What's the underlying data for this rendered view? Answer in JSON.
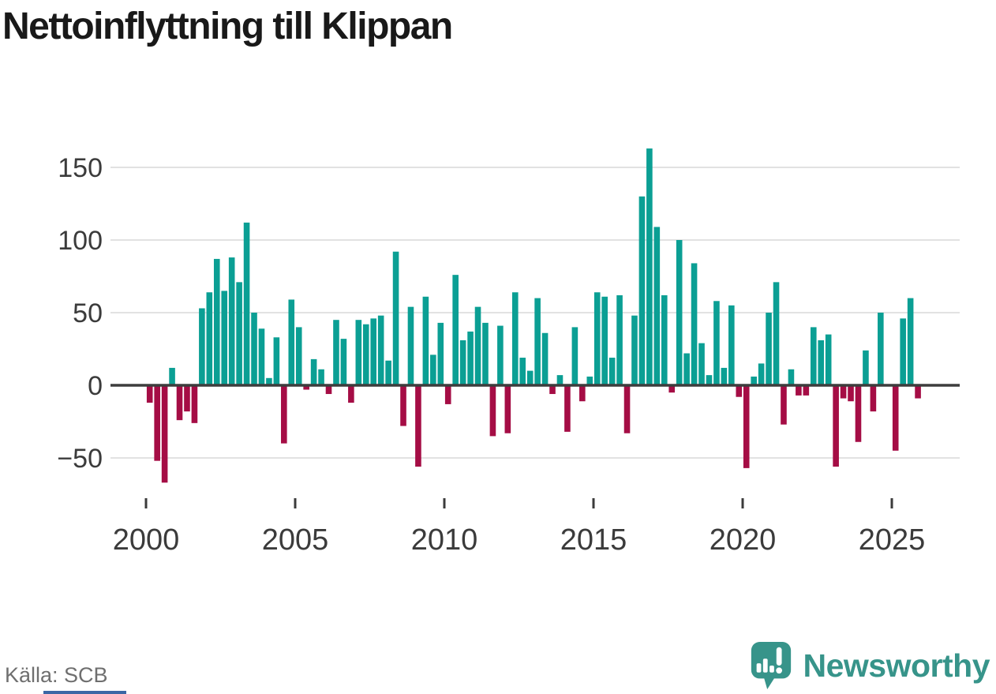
{
  "title": "Nettoinflyttning till Klippan",
  "source": "Källa: SCB",
  "branding": {
    "name": "Newsworthy",
    "icon": "newsworthy-speech-bubble-chart-icon"
  },
  "colors": {
    "positive": "#0b9f94",
    "negative": "#a50d45",
    "brand": "#37948a",
    "grid": "#e2e2e2",
    "axis_line": "#3d3d3d",
    "tick_text": "#3b3b3b",
    "title_text": "#191919",
    "source_text": "#6f6f6f",
    "accent_strip": "#3a67a5"
  },
  "chart_data": {
    "type": "bar",
    "title": "Nettoinflyttning till Klippan",
    "x_unit": "quarter",
    "start": "2000Q1",
    "end": "2025Q4",
    "grid": "horizontal",
    "legend": "none",
    "ylim": [
      -70,
      172
    ],
    "y_ticks": [
      -50,
      0,
      50,
      100,
      150
    ],
    "y_tick_labels": [
      "−50",
      "0",
      "50",
      "100",
      "150"
    ],
    "x_tick_years": [
      2000,
      2005,
      2010,
      2015,
      2020,
      2025
    ],
    "x_tick_labels": [
      "2000",
      "2005",
      "2010",
      "2015",
      "2020",
      "2025"
    ],
    "series_name": "Nettoinflyttning",
    "years": [
      {
        "year": 2000,
        "q": [
          -12,
          -52,
          -67,
          12
        ]
      },
      {
        "year": 2001,
        "q": [
          -24,
          -18,
          -26,
          53
        ]
      },
      {
        "year": 2002,
        "q": [
          64,
          87,
          65,
          88
        ]
      },
      {
        "year": 2003,
        "q": [
          71,
          112,
          50,
          39
        ]
      },
      {
        "year": 2004,
        "q": [
          5,
          33,
          -40,
          59
        ]
      },
      {
        "year": 2005,
        "q": [
          40,
          -3,
          18,
          11
        ]
      },
      {
        "year": 2006,
        "q": [
          -6,
          45,
          32,
          -12
        ]
      },
      {
        "year": 2007,
        "q": [
          45,
          42,
          46,
          48
        ]
      },
      {
        "year": 2008,
        "q": [
          17,
          92,
          -28,
          54
        ]
      },
      {
        "year": 2009,
        "q": [
          -56,
          61,
          21,
          43
        ]
      },
      {
        "year": 2010,
        "q": [
          -13,
          76,
          31,
          37
        ]
      },
      {
        "year": 2011,
        "q": [
          54,
          43,
          -35,
          41
        ]
      },
      {
        "year": 2012,
        "q": [
          -33,
          64,
          19,
          10
        ]
      },
      {
        "year": 2013,
        "q": [
          60,
          36,
          -6,
          7
        ]
      },
      {
        "year": 2014,
        "q": [
          -32,
          40,
          -11,
          6
        ]
      },
      {
        "year": 2015,
        "q": [
          64,
          61,
          19,
          62
        ]
      },
      {
        "year": 2016,
        "q": [
          -33,
          48,
          130,
          163
        ]
      },
      {
        "year": 2017,
        "q": [
          109,
          62,
          -5,
          100
        ]
      },
      {
        "year": 2018,
        "q": [
          22,
          84,
          29,
          7
        ]
      },
      {
        "year": 2019,
        "q": [
          58,
          12,
          55,
          -8
        ]
      },
      {
        "year": 2020,
        "q": [
          -57,
          6,
          15,
          50
        ]
      },
      {
        "year": 2021,
        "q": [
          71,
          -27,
          11,
          -7
        ]
      },
      {
        "year": 2022,
        "q": [
          -7,
          40,
          31,
          35
        ]
      },
      {
        "year": 2023,
        "q": [
          -56,
          -9,
          -11,
          -39
        ]
      },
      {
        "year": 2024,
        "q": [
          24,
          -18,
          50,
          0
        ]
      },
      {
        "year": 2025,
        "q": [
          -45,
          46,
          60,
          -9
        ]
      }
    ]
  }
}
